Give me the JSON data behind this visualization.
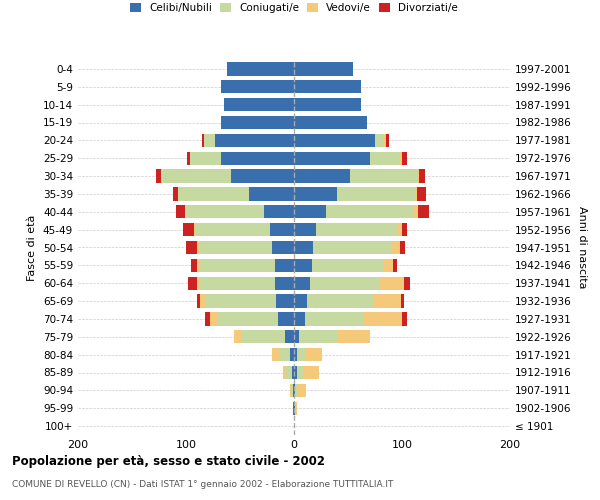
{
  "age_groups": [
    "100+",
    "95-99",
    "90-94",
    "85-89",
    "80-84",
    "75-79",
    "70-74",
    "65-69",
    "60-64",
    "55-59",
    "50-54",
    "45-49",
    "40-44",
    "35-39",
    "30-34",
    "25-29",
    "20-24",
    "15-19",
    "10-14",
    "5-9",
    "0-4"
  ],
  "birth_years": [
    "≤ 1901",
    "1902-1906",
    "1907-1911",
    "1912-1916",
    "1917-1921",
    "1922-1926",
    "1927-1931",
    "1932-1936",
    "1937-1941",
    "1942-1946",
    "1947-1951",
    "1952-1956",
    "1957-1961",
    "1962-1966",
    "1967-1971",
    "1972-1976",
    "1977-1981",
    "1982-1986",
    "1987-1991",
    "1992-1996",
    "1997-2001"
  ],
  "maschi": {
    "celibi": [
      0,
      1,
      1,
      2,
      4,
      8,
      15,
      17,
      18,
      18,
      20,
      22,
      28,
      42,
      58,
      68,
      73,
      68,
      65,
      68,
      62
    ],
    "coniugati": [
      0,
      0,
      1,
      5,
      9,
      40,
      55,
      65,
      70,
      70,
      68,
      70,
      72,
      65,
      65,
      28,
      10,
      0,
      0,
      0,
      0
    ],
    "vedovi": [
      0,
      0,
      2,
      3,
      7,
      8,
      8,
      5,
      2,
      2,
      2,
      1,
      1,
      0,
      0,
      0,
      0,
      0,
      0,
      0,
      0
    ],
    "divorziati": [
      0,
      0,
      0,
      0,
      0,
      0,
      4,
      3,
      8,
      5,
      10,
      10,
      8,
      5,
      5,
      3,
      2,
      0,
      0,
      0,
      0
    ]
  },
  "femmine": {
    "nubili": [
      0,
      1,
      1,
      3,
      3,
      5,
      10,
      12,
      15,
      17,
      18,
      20,
      30,
      40,
      52,
      70,
      75,
      68,
      62,
      62,
      55
    ],
    "coniugate": [
      0,
      0,
      2,
      5,
      8,
      35,
      55,
      62,
      65,
      65,
      72,
      75,
      80,
      72,
      62,
      28,
      8,
      0,
      0,
      0,
      0
    ],
    "vedove": [
      0,
      2,
      8,
      15,
      15,
      30,
      35,
      25,
      22,
      10,
      8,
      5,
      5,
      2,
      2,
      2,
      2,
      0,
      0,
      0,
      0
    ],
    "divorziate": [
      0,
      0,
      0,
      0,
      0,
      0,
      5,
      3,
      5,
      3,
      5,
      5,
      10,
      8,
      5,
      5,
      3,
      0,
      0,
      0,
      0
    ]
  },
  "colors": {
    "celibi": "#3a6fad",
    "coniugati": "#c5d9a0",
    "vedovi": "#f5c97a",
    "divorziati": "#cc2222"
  },
  "title": "Popolazione per età, sesso e stato civile - 2002",
  "subtitle": "COMUNE DI REVELLO (CN) - Dati ISTAT 1° gennaio 2002 - Elaborazione TUTTITALIA.IT",
  "ylabel_left": "Fasce di età",
  "ylabel_right": "Anni di nascita",
  "xlabel": "",
  "xlim": 200,
  "background_color": "#ffffff",
  "grid_color": "#cccccc"
}
